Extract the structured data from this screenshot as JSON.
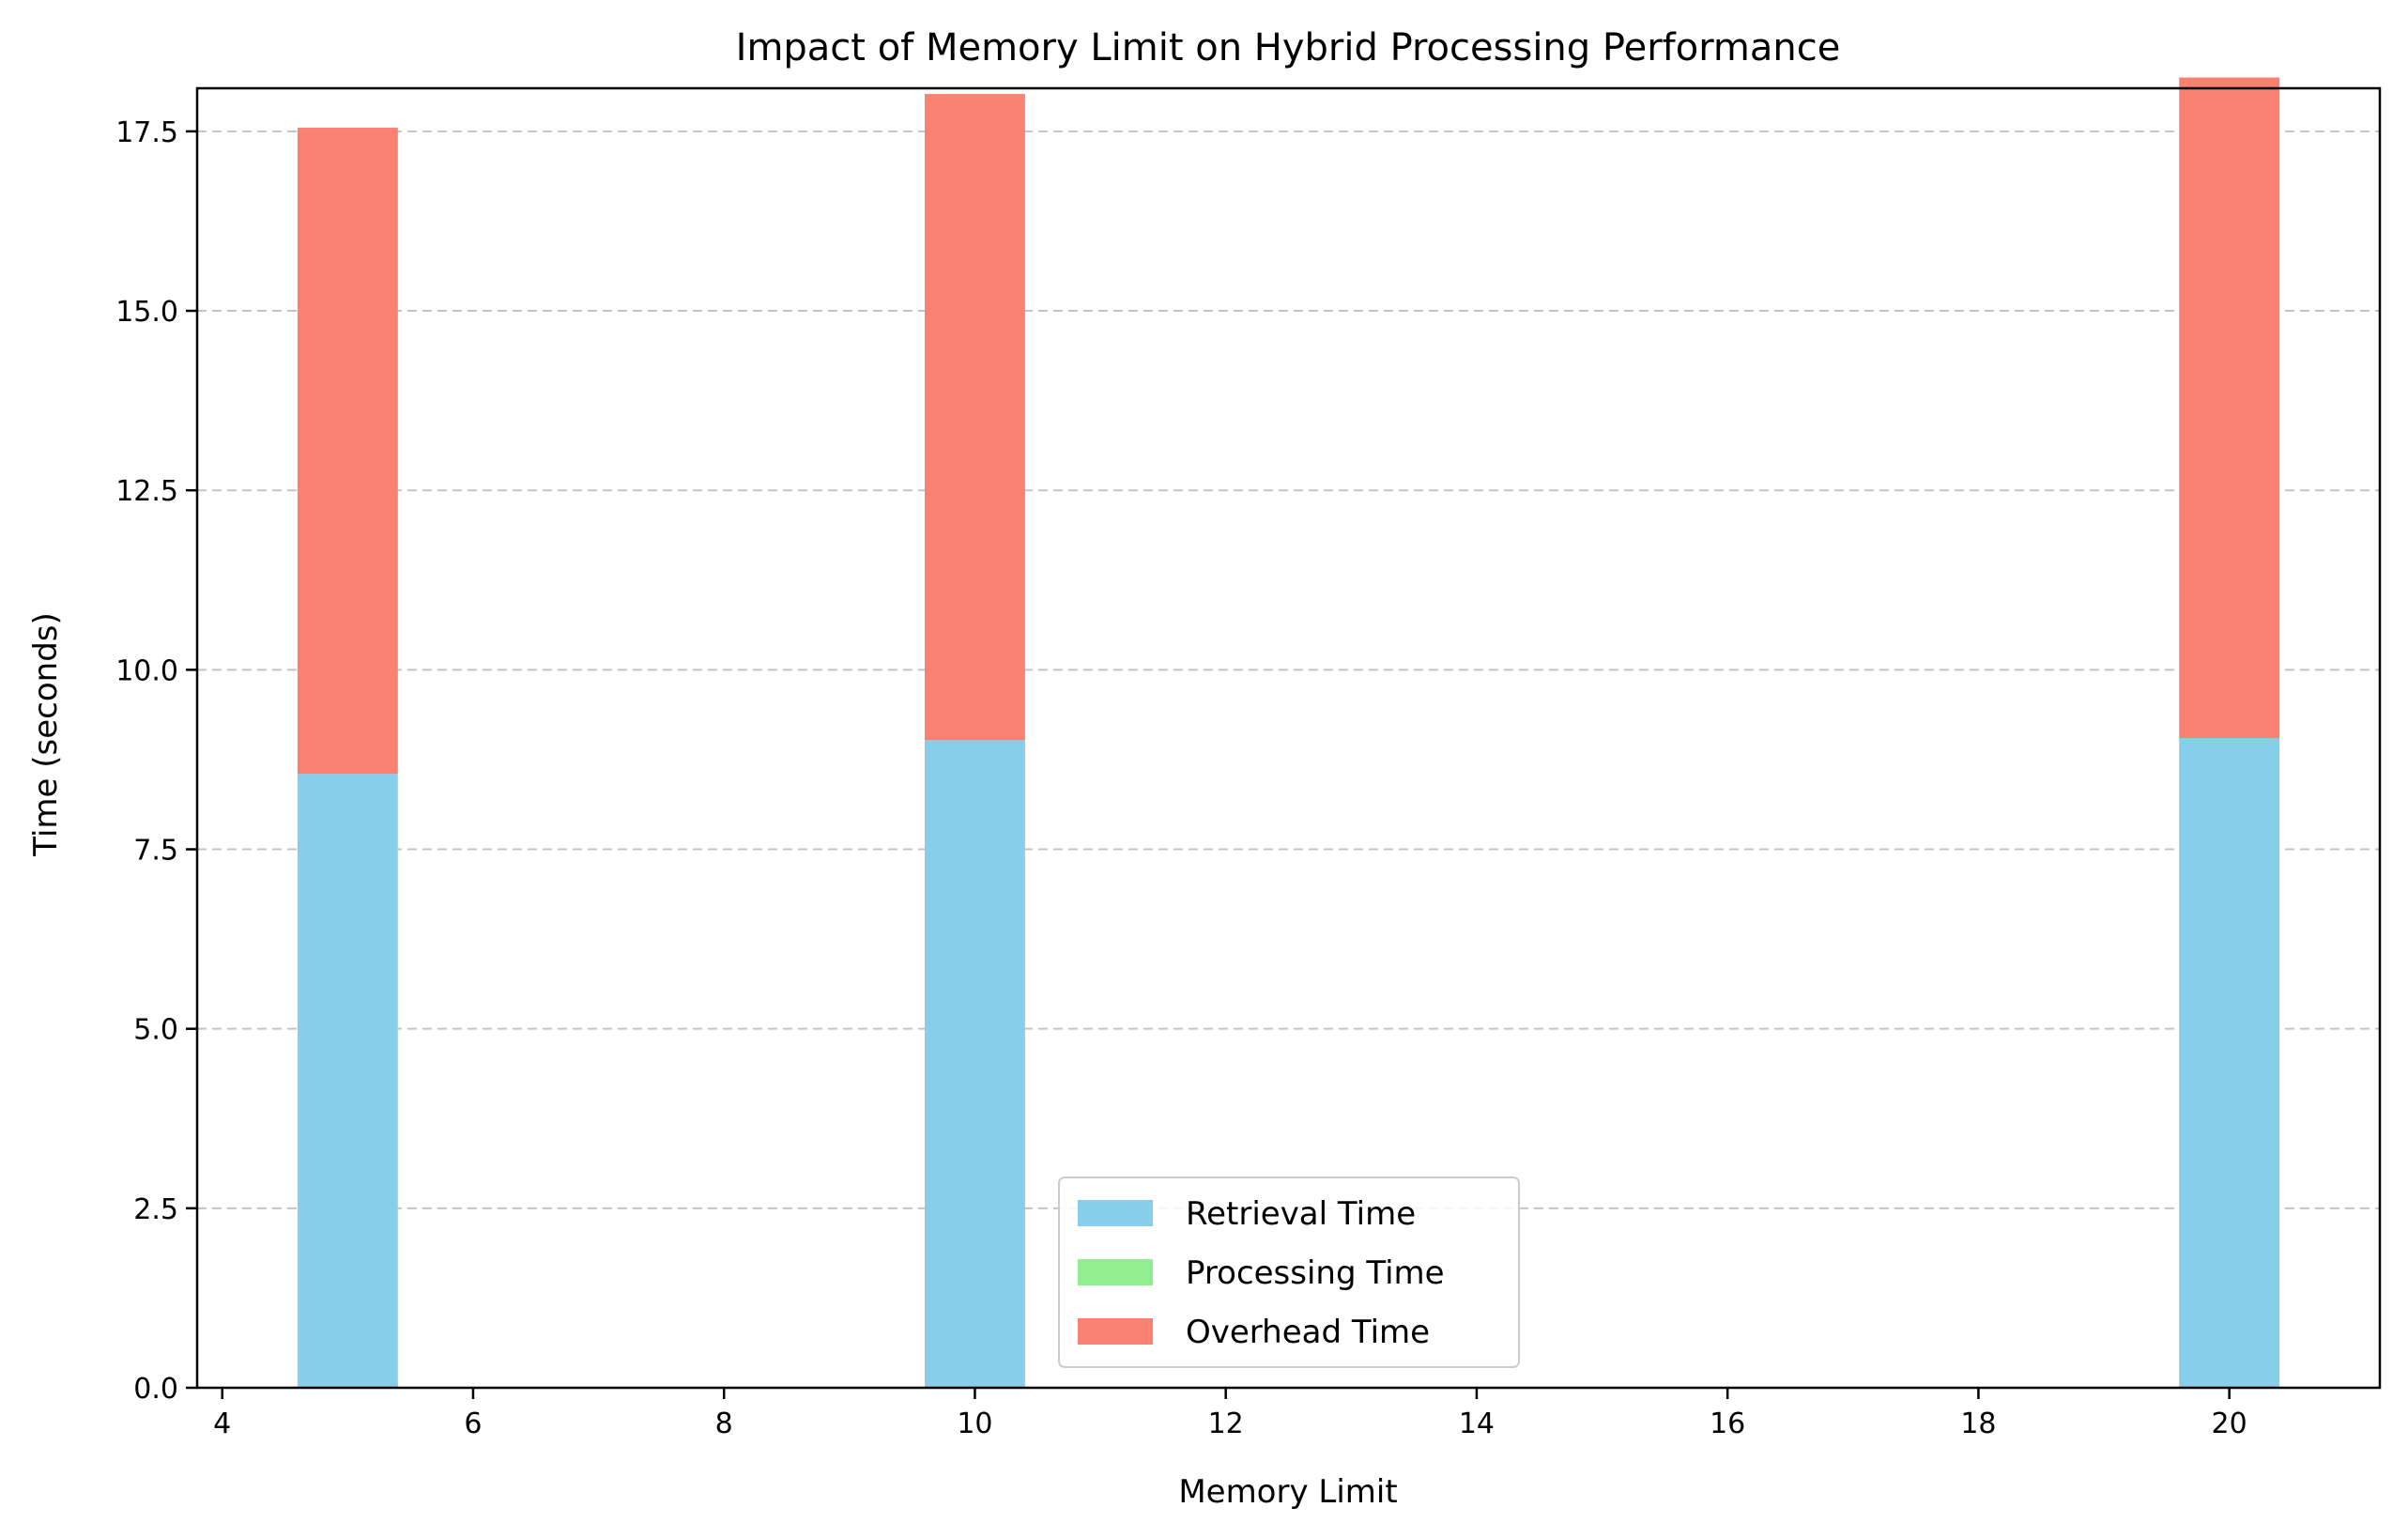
{
  "chart_data": {
    "type": "bar",
    "stacked": true,
    "title": "Impact of Memory Limit on Hybrid Processing Performance",
    "xlabel": "Memory Limit",
    "ylabel": "Time (seconds)",
    "x": [
      5,
      10,
      20
    ],
    "bar_width": 0.8,
    "xlim": [
      3.8,
      21.2
    ],
    "ylim": [
      0,
      18.1
    ],
    "xticks": [
      4,
      6,
      8,
      10,
      12,
      14,
      16,
      18,
      20
    ],
    "yticks": [
      0.0,
      2.5,
      5.0,
      7.5,
      10.0,
      12.5,
      15.0,
      17.5
    ],
    "xtick_labels": [
      "4",
      "6",
      "8",
      "10",
      "12",
      "14",
      "16",
      "18",
      "20"
    ],
    "ytick_labels": [
      "0.0",
      "2.5",
      "5.0",
      "7.5",
      "10.0",
      "12.5",
      "15.0",
      "17.5"
    ],
    "grid": "y dashed",
    "legend_position": "lower center",
    "series": [
      {
        "name": "Retrieval Time",
        "color": "#87ceeb",
        "values": [
          8.55,
          9.02,
          9.05
        ]
      },
      {
        "name": "Processing Time",
        "color": "#90ee90",
        "values": [
          0.0,
          0.0,
          0.0
        ]
      },
      {
        "name": "Overhead Time",
        "color": "#fa8072",
        "values": [
          9.0,
          9.0,
          9.2
        ]
      }
    ]
  }
}
